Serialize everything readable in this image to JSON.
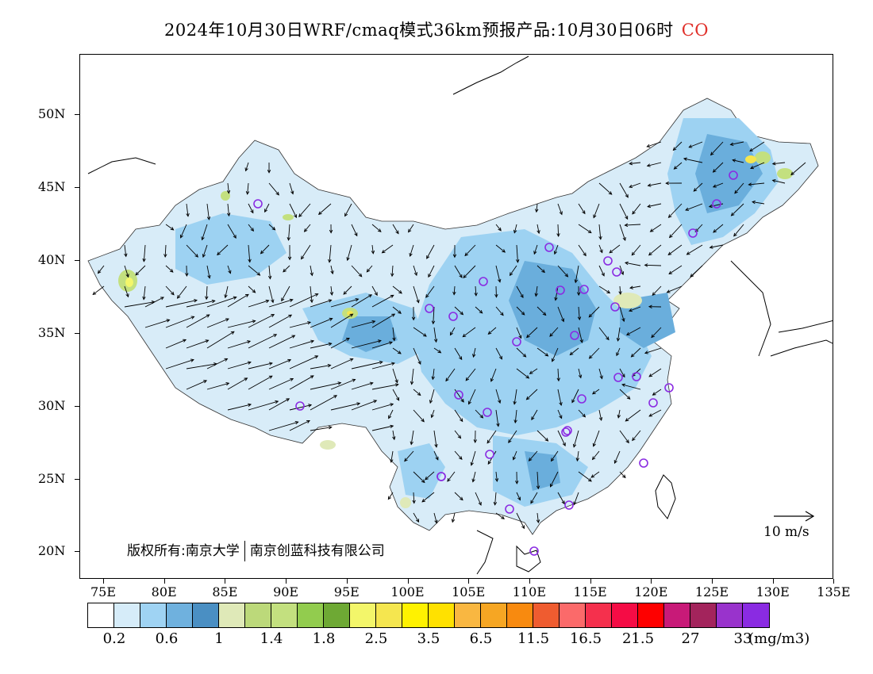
{
  "title": {
    "text": "2024年10月30日WRF/cmaq模式36km预报产品:10月30日06时",
    "species": "CO"
  },
  "map": {
    "lat_labels": [
      "50N",
      "45N",
      "40N",
      "35N",
      "30N",
      "25N",
      "20N"
    ],
    "lon_labels": [
      "75E",
      "80E",
      "85E",
      "90E",
      "95E",
      "100E",
      "105E",
      "110E",
      "115E",
      "120E",
      "125E",
      "130E",
      "135E"
    ],
    "copyright_left": "版权所有:南京大学",
    "copyright_right": "南京创蓝科技有限公司",
    "reference_vector_label": "10 m/s",
    "land_color": "#d8ecf8",
    "medium_color": "#9dd2f2",
    "high_color": "#6aaedc",
    "marker_color": "#8a2be2"
  },
  "legend": {
    "colors": [
      "#ffffff",
      "#d6ecf9",
      "#9fd3f3",
      "#6fb1de",
      "#4a8fc3",
      "#dfe9b8",
      "#bcd97a",
      "#c3e07f",
      "#92cc4e",
      "#6ea934",
      "#f3f66a",
      "#f5e64f",
      "#fff200",
      "#ffe100",
      "#f9b741",
      "#f6a623",
      "#f88a0f",
      "#ef5c30",
      "#fb6a6a",
      "#f5304d",
      "#f50c45",
      "#fe0000",
      "#c81a78",
      "#a3245c",
      "#9933cc",
      "#8a2be2"
    ],
    "labels": [
      "0.2",
      "0.6",
      "1",
      "1.4",
      "1.8",
      "2.5",
      "3.5",
      "6.5",
      "11.5",
      "16.5",
      "21.5",
      "27",
      "33"
    ],
    "unit": "(mg/m3)"
  }
}
